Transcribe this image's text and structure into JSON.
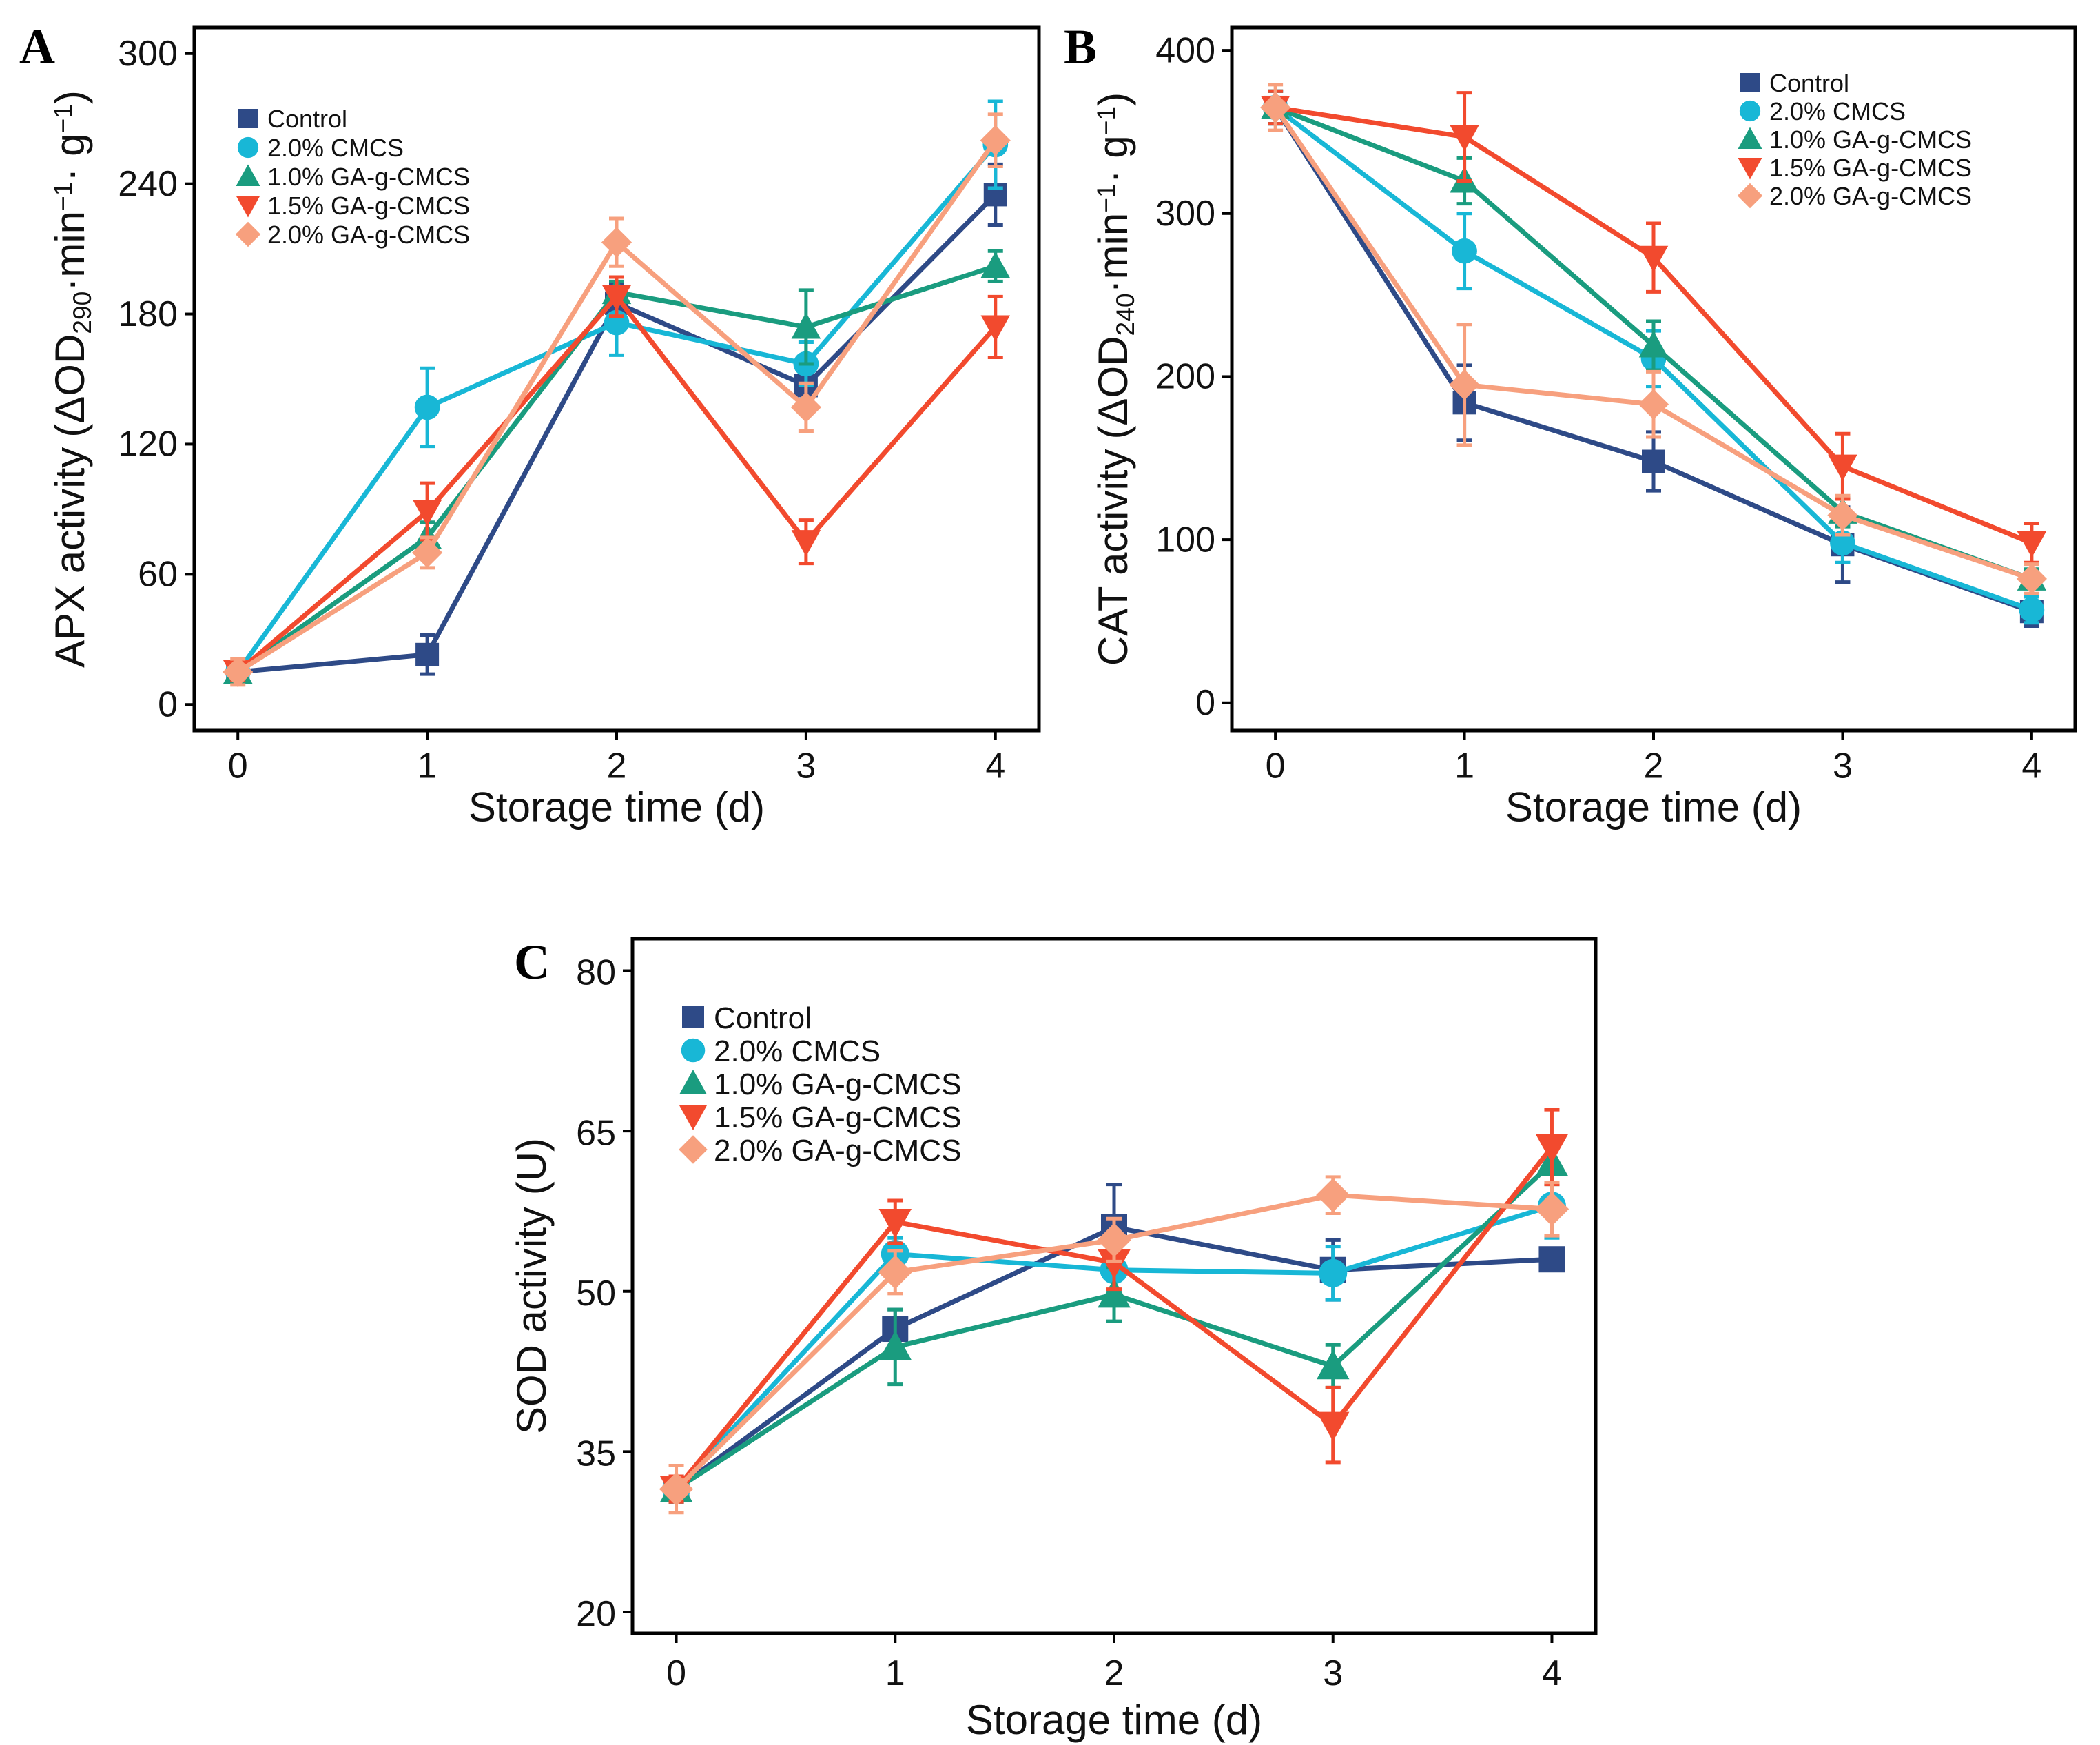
{
  "colors": {
    "Control": "#2E4A87",
    "2.0% CMCS": "#18B7D6",
    "1.0% GA-g-CMCS": "#1A9C7F",
    "1.5% GA-g-CMCS": "#F24A2E",
    "2.0% GA-g-CMCS": "#F7A07E"
  },
  "markers": {
    "Control": "square",
    "2.0% CMCS": "circle",
    "1.0% GA-g-CMCS": "triangle-up",
    "1.5% GA-g-CMCS": "triangle-down",
    "2.0% GA-g-CMCS": "diamond"
  },
  "chart_data": [
    {
      "panel": "A",
      "type": "line",
      "title": "",
      "xlabel": "Storage time (d)",
      "ylabel_main": "APX activity",
      "ylabel_unit_prefix": "(ΔOD",
      "ylabel_unit_sub": "290",
      "ylabel_unit_mid": "·min",
      "ylabel_unit_sup1": "−1",
      "ylabel_unit_mid2": "· g",
      "ylabel_unit_sup2": "−1",
      "ylabel_unit_suffix": ")",
      "x": [
        0,
        1,
        2,
        3,
        4
      ],
      "xticks": [
        "0",
        "1",
        "2",
        "3",
        "4"
      ],
      "ylim": [
        -12,
        312
      ],
      "yticks": [
        0,
        60,
        120,
        180,
        240,
        300
      ],
      "ytick_labels": [
        "0",
        "60",
        "120",
        "180",
        "240",
        "300"
      ],
      "legend_position": "top-left",
      "series": [
        {
          "name": "Control",
          "values": [
            15,
            23,
            185,
            147,
            235
          ],
          "errors": [
            4,
            9,
            9,
            8,
            14
          ]
        },
        {
          "name": "2.0% CMCS",
          "values": [
            15,
            137,
            176,
            157,
            258
          ],
          "errors": [
            4,
            18,
            15,
            10,
            20
          ]
        },
        {
          "name": "1.0% GA-g-CMCS",
          "values": [
            15,
            77,
            190,
            174,
            202
          ],
          "errors": [
            4,
            7,
            5,
            17,
            7
          ]
        },
        {
          "name": "1.5% GA-g-CMCS",
          "values": [
            15,
            89,
            188,
            75,
            174
          ],
          "errors": [
            4,
            13,
            9,
            10,
            14
          ]
        },
        {
          "name": "2.0% GA-g-CMCS",
          "values": [
            15,
            70,
            213,
            137,
            260
          ],
          "errors": [
            6,
            7,
            11,
            11,
            12
          ]
        }
      ]
    },
    {
      "panel": "B",
      "type": "line",
      "title": "",
      "xlabel": "Storage time (d)",
      "ylabel_main": "CAT activity",
      "ylabel_unit_prefix": "(ΔOD",
      "ylabel_unit_sub": "240",
      "ylabel_unit_mid": "·min",
      "ylabel_unit_sup1": "−1",
      "ylabel_unit_mid2": "· g",
      "ylabel_unit_sup2": "−1",
      "ylabel_unit_suffix": ")",
      "x": [
        0,
        1,
        2,
        3,
        4
      ],
      "xticks": [
        "0",
        "1",
        "2",
        "3",
        "4"
      ],
      "ylim": [
        -17,
        414
      ],
      "yticks": [
        0,
        100,
        200,
        300,
        400
      ],
      "ytick_labels": [
        "0",
        "100",
        "200",
        "300",
        "400"
      ],
      "legend_position": "top-right",
      "series": [
        {
          "name": "Control",
          "values": [
            365,
            184,
            148,
            97,
            56
          ],
          "errors": [
            10,
            23,
            18,
            23,
            9
          ]
        },
        {
          "name": "2.0% CMCS",
          "values": [
            365,
            277,
            211,
            98,
            57
          ],
          "errors": [
            10,
            23,
            17,
            12,
            8
          ]
        },
        {
          "name": "1.0% GA-g-CMCS",
          "values": [
            365,
            320,
            219,
            117,
            76
          ],
          "errors": [
            10,
            14,
            15,
            9,
            6
          ]
        },
        {
          "name": "1.5% GA-g-CMCS",
          "values": [
            365,
            347,
            273,
            145,
            98
          ],
          "errors": [
            10,
            27,
            21,
            20,
            12
          ]
        },
        {
          "name": "2.0% GA-g-CMCS",
          "values": [
            365,
            195,
            183,
            115,
            76
          ],
          "errors": [
            14,
            37,
            20,
            12,
            9
          ]
        }
      ]
    },
    {
      "panel": "C",
      "type": "line",
      "title": "",
      "xlabel": "Storage time (d)",
      "ylabel_main": "SOD activity (U)",
      "x": [
        0,
        1,
        2,
        3,
        4
      ],
      "xticks": [
        "0",
        "1",
        "2",
        "3",
        "4"
      ],
      "ylim": [
        18,
        83
      ],
      "yticks": [
        20,
        35,
        50,
        65,
        80
      ],
      "ytick_labels": [
        "20",
        "35",
        "50",
        "65",
        "80"
      ],
      "legend_position": "top-left",
      "series": [
        {
          "name": "Control",
          "values": [
            31.5,
            46.5,
            56,
            52,
            53
          ],
          "errors": [
            1.2,
            1.8,
            4,
            2.8,
            1
          ]
        },
        {
          "name": "2.0% CMCS",
          "values": [
            31.5,
            53.5,
            52,
            51.7,
            58
          ],
          "errors": [
            1.2,
            1.5,
            2,
            2.5,
            3
          ]
        },
        {
          "name": "1.0% GA-g-CMCS",
          "values": [
            31.5,
            44.8,
            49.7,
            43,
            62
          ],
          "errors": [
            1.2,
            3.5,
            2.5,
            2,
            2
          ]
        },
        {
          "name": "1.5% GA-g-CMCS",
          "values": [
            31.5,
            56.5,
            52.7,
            37.5,
            63.5
          ],
          "errors": [
            1.2,
            2,
            2.5,
            3.5,
            3.5
          ]
        },
        {
          "name": "2.0% GA-g-CMCS",
          "values": [
            31.5,
            51.8,
            54.8,
            59,
            57.7
          ],
          "errors": [
            2.2,
            2,
            2,
            1.7,
            2.5
          ]
        }
      ]
    }
  ]
}
